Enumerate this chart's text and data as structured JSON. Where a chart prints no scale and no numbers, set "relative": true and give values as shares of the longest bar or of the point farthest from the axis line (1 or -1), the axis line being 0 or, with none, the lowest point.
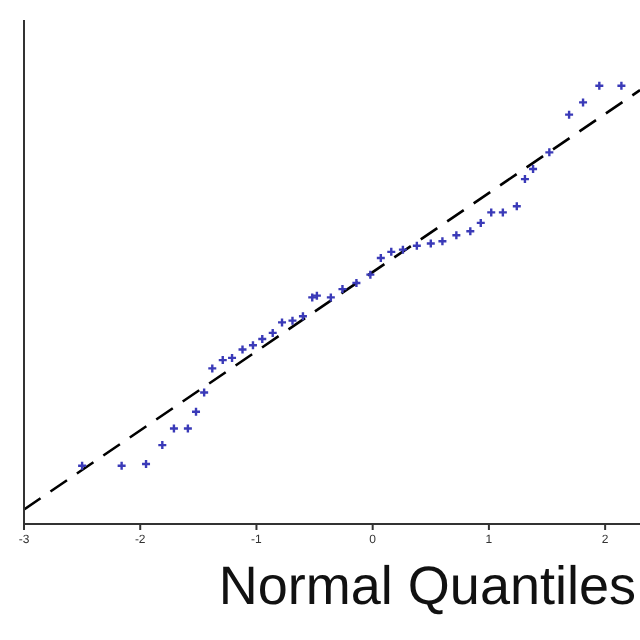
{
  "chart_data": {
    "type": "scatter",
    "xlabel": "Normal Quantiles",
    "relative": true,
    "xlim": [
      -3,
      2.3
    ],
    "xticks": [
      -3,
      -2,
      -1,
      0,
      1,
      2
    ],
    "marker": "cross",
    "grid": false,
    "legend": false,
    "series": [
      {
        "color": "#3a3ab8",
        "x": [
          -2.5,
          -2.16,
          -1.95,
          -1.81,
          -1.71,
          -1.59,
          -1.52,
          -1.45,
          -1.38,
          -1.29,
          -1.21,
          -1.12,
          -1.03,
          -0.95,
          -0.86,
          -0.78,
          -0.69,
          -0.6,
          -0.52,
          -0.48,
          -0.36,
          -0.26,
          -0.14,
          -0.02,
          0.07,
          0.16,
          0.26,
          0.38,
          0.5,
          0.6,
          0.72,
          0.84,
          0.93,
          1.02,
          1.12,
          1.24,
          1.31,
          1.38,
          1.52,
          1.69,
          1.81,
          1.95,
          2.14
        ],
        "values": [
          0.133,
          0.133,
          0.137,
          0.18,
          0.218,
          0.218,
          0.256,
          0.3,
          0.355,
          0.374,
          0.379,
          0.398,
          0.408,
          0.422,
          0.436,
          0.46,
          0.464,
          0.474,
          0.517,
          0.521,
          0.517,
          0.536,
          0.55,
          0.569,
          0.607,
          0.621,
          0.626,
          0.635,
          0.64,
          0.645,
          0.659,
          0.668,
          0.687,
          0.711,
          0.711,
          0.725,
          0.787,
          0.81,
          0.848,
          0.934,
          0.962,
          1,
          1
        ]
      },
      {
        "type": "line",
        "color": "#000000",
        "line_style": "dashed",
        "marker": "none",
        "x": [
          -3,
          2.3
        ],
        "values": [
          0.033,
          0.99
        ]
      }
    ]
  }
}
